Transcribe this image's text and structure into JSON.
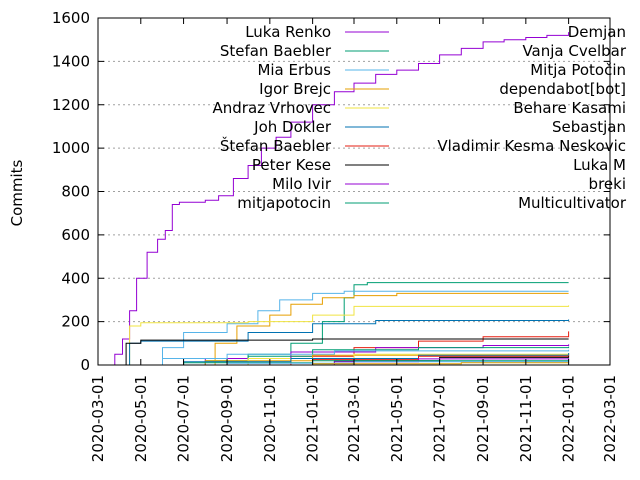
{
  "chart_data": {
    "type": "line",
    "ylabel": "Commits",
    "xlabel": "",
    "ylim": [
      0,
      1600
    ],
    "xlim": [
      "2020-03-01",
      "2022-03-01"
    ],
    "yticks": [
      "0",
      "200",
      "400",
      "600",
      "800",
      "1000",
      "1200",
      "1400",
      "1600"
    ],
    "xticks": [
      "2020-03-01",
      "2020-05-01",
      "2020-07-01",
      "2020-09-01",
      "2020-11-01",
      "2021-01-01",
      "2021-03-01",
      "2021-05-01",
      "2021-07-01",
      "2021-09-01",
      "2021-11-01",
      "2022-01-01",
      "2022-03-01"
    ],
    "grid": true,
    "legend_position": "top",
    "series": [
      {
        "name": "Luka Renko",
        "color": "#9400d3",
        "points": [
          [
            "2020-03-15",
            0
          ],
          [
            "2020-03-25",
            50
          ],
          [
            "2020-04-05",
            120
          ],
          [
            "2020-04-15",
            250
          ],
          [
            "2020-04-25",
            400
          ],
          [
            "2020-05-10",
            520
          ],
          [
            "2020-05-25",
            580
          ],
          [
            "2020-06-05",
            620
          ],
          [
            "2020-06-15",
            740
          ],
          [
            "2020-06-25",
            750
          ],
          [
            "2020-07-15",
            750
          ],
          [
            "2020-08-01",
            760
          ],
          [
            "2020-08-20",
            780
          ],
          [
            "2020-09-10",
            860
          ],
          [
            "2020-10-01",
            920
          ],
          [
            "2020-10-20",
            1000
          ],
          [
            "2020-11-10",
            1050
          ],
          [
            "2020-12-01",
            1120
          ],
          [
            "2021-01-01",
            1200
          ],
          [
            "2021-02-01",
            1260
          ],
          [
            "2021-03-01",
            1300
          ],
          [
            "2021-04-01",
            1340
          ],
          [
            "2021-05-01",
            1360
          ],
          [
            "2021-06-01",
            1390
          ],
          [
            "2021-07-01",
            1430
          ],
          [
            "2021-08-01",
            1460
          ],
          [
            "2021-09-01",
            1490
          ],
          [
            "2021-10-01",
            1500
          ],
          [
            "2021-11-01",
            1510
          ],
          [
            "2021-12-01",
            1520
          ],
          [
            "2022-01-01",
            1535
          ]
        ]
      },
      {
        "name": "Stefan Baebler",
        "color": "#009e73",
        "points": [
          [
            "2020-06-15",
            0
          ],
          [
            "2020-08-01",
            20
          ],
          [
            "2020-10-01",
            50
          ],
          [
            "2020-12-01",
            100
          ],
          [
            "2021-01-15",
            200
          ],
          [
            "2021-02-15",
            310
          ],
          [
            "2021-03-01",
            370
          ],
          [
            "2021-03-20",
            380
          ],
          [
            "2022-01-01",
            380
          ]
        ]
      },
      {
        "name": "Mia Erbus",
        "color": "#56b4e9",
        "points": [
          [
            "2020-05-01",
            0
          ],
          [
            "2020-06-01",
            80
          ],
          [
            "2020-07-01",
            150
          ],
          [
            "2020-09-01",
            190
          ],
          [
            "2020-10-15",
            250
          ],
          [
            "2020-11-15",
            300
          ],
          [
            "2021-01-01",
            330
          ],
          [
            "2021-02-15",
            340
          ],
          [
            "2022-01-01",
            340
          ]
        ]
      },
      {
        "name": "Igor Brejc",
        "color": "#e69f00",
        "points": [
          [
            "2020-07-01",
            0
          ],
          [
            "2020-08-15",
            100
          ],
          [
            "2020-09-15",
            180
          ],
          [
            "2020-11-01",
            230
          ],
          [
            "2020-12-01",
            280
          ],
          [
            "2021-01-15",
            310
          ],
          [
            "2021-03-01",
            320
          ],
          [
            "2021-05-01",
            330
          ],
          [
            "2022-01-01",
            330
          ]
        ]
      },
      {
        "name": "Andraz Vrhovec",
        "color": "#f0e442",
        "points": [
          [
            "2020-03-20",
            0
          ],
          [
            "2020-04-15",
            180
          ],
          [
            "2020-05-01",
            195
          ],
          [
            "2020-10-01",
            200
          ],
          [
            "2021-01-01",
            230
          ],
          [
            "2021-03-01",
            270
          ],
          [
            "2022-01-01",
            275
          ]
        ]
      },
      {
        "name": "Joh Dokler",
        "color": "#0072b2",
        "points": [
          [
            "2020-03-25",
            0
          ],
          [
            "2020-04-15",
            100
          ],
          [
            "2020-05-01",
            110
          ],
          [
            "2020-10-01",
            150
          ],
          [
            "2021-01-01",
            190
          ],
          [
            "2021-04-01",
            205
          ],
          [
            "2022-01-01",
            210
          ]
        ]
      },
      {
        "name": "Štefan Baebler",
        "color": "#e51e10",
        "points": [
          [
            "2020-10-01",
            0
          ],
          [
            "2020-12-01",
            40
          ],
          [
            "2021-03-01",
            80
          ],
          [
            "2021-06-01",
            110
          ],
          [
            "2021-09-01",
            130
          ],
          [
            "2022-01-01",
            155
          ]
        ]
      },
      {
        "name": "Peter Kese",
        "color": "#000000",
        "points": [
          [
            "2020-03-25",
            0
          ],
          [
            "2020-04-10",
            100
          ],
          [
            "2020-05-01",
            115
          ],
          [
            "2021-01-01",
            120
          ],
          [
            "2022-01-01",
            120
          ]
        ]
      },
      {
        "name": "Milo Ivir",
        "color": "#9400d3",
        "points": [
          [
            "2020-06-01",
            0
          ],
          [
            "2020-08-01",
            30
          ],
          [
            "2020-12-01",
            60
          ],
          [
            "2021-04-01",
            80
          ],
          [
            "2021-09-01",
            90
          ],
          [
            "2022-01-01",
            95
          ]
        ]
      },
      {
        "name": "mitjapotocin",
        "color": "#009e73",
        "points": [
          [
            "2020-08-01",
            0
          ],
          [
            "2020-10-01",
            40
          ],
          [
            "2021-01-01",
            70
          ],
          [
            "2021-06-01",
            80
          ],
          [
            "2022-01-01",
            85
          ]
        ]
      },
      {
        "name": "Demjan",
        "color": "#56b4e9",
        "points": [
          [
            "2020-05-01",
            0
          ],
          [
            "2020-06-01",
            30
          ],
          [
            "2020-09-01",
            50
          ],
          [
            "2021-02-01",
            65
          ],
          [
            "2022-01-01",
            70
          ]
        ]
      },
      {
        "name": "Vanja Cvelbar",
        "color": "#e69f00",
        "points": [
          [
            "2020-06-01",
            0
          ],
          [
            "2020-08-01",
            20
          ],
          [
            "2021-01-01",
            45
          ],
          [
            "2022-01-01",
            55
          ]
        ]
      },
      {
        "name": "Mitja Potočin",
        "color": "#f0e442",
        "points": [
          [
            "2020-07-01",
            0
          ],
          [
            "2020-10-01",
            30
          ],
          [
            "2021-03-01",
            50
          ],
          [
            "2022-01-01",
            55
          ]
        ]
      },
      {
        "name": "dependabot[bot]",
        "color": "#0072b2",
        "points": [
          [
            "2020-04-01",
            0
          ],
          [
            "2020-07-01",
            15
          ],
          [
            "2020-12-01",
            30
          ],
          [
            "2021-06-01",
            45
          ],
          [
            "2022-01-01",
            55
          ]
        ]
      },
      {
        "name": "Behare Kasami",
        "color": "#e51e10",
        "points": [
          [
            "2020-09-01",
            0
          ],
          [
            "2021-01-01",
            25
          ],
          [
            "2021-06-01",
            40
          ],
          [
            "2022-01-01",
            45
          ]
        ]
      },
      {
        "name": "Sebastjan",
        "color": "#000000",
        "points": [
          [
            "2020-10-01",
            0
          ],
          [
            "2021-02-01",
            20
          ],
          [
            "2021-07-01",
            35
          ],
          [
            "2022-01-01",
            40
          ]
        ]
      },
      {
        "name": "Vladimir Kesma Neskovic",
        "color": "#9400d3",
        "points": [
          [
            "2020-11-01",
            0
          ],
          [
            "2021-02-01",
            15
          ],
          [
            "2021-06-01",
            28
          ],
          [
            "2022-01-01",
            32
          ]
        ]
      },
      {
        "name": "Luka M",
        "color": "#009e73",
        "points": [
          [
            "2020-05-01",
            0
          ],
          [
            "2020-07-01",
            10
          ],
          [
            "2021-01-01",
            20
          ],
          [
            "2022-01-01",
            25
          ]
        ]
      },
      {
        "name": "breki",
        "color": "#56b4e9",
        "points": [
          [
            "2020-06-01",
            0
          ],
          [
            "2020-09-01",
            8
          ],
          [
            "2021-03-01",
            15
          ],
          [
            "2022-01-01",
            18
          ]
        ]
      },
      {
        "name": "Multicultivator",
        "color": "#e69f00",
        "points": [
          [
            "2020-08-01",
            0
          ],
          [
            "2021-01-01",
            6
          ],
          [
            "2021-08-01",
            10
          ],
          [
            "2022-01-01",
            12
          ]
        ]
      }
    ]
  }
}
